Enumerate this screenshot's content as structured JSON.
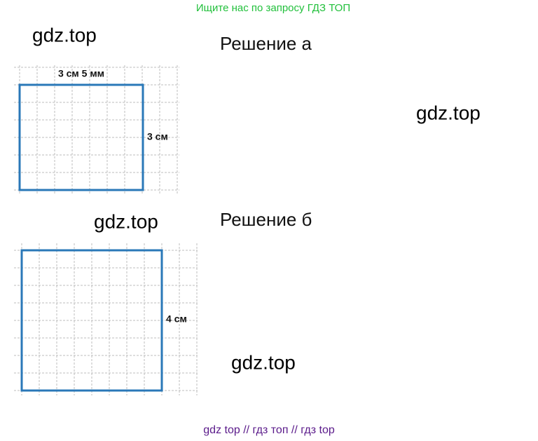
{
  "header": {
    "text": "Ищите нас по запросу ГДЗ ТОП"
  },
  "watermarks": [
    "gdz.top",
    "gdz.top",
    "gdz.top",
    "gdz.top"
  ],
  "solutions": [
    {
      "title": "Решение а",
      "labels": [
        "3 см 5 мм",
        "3 см"
      ]
    },
    {
      "title": "Решение б",
      "labels": [
        "4 см"
      ]
    }
  ],
  "footer": {
    "text": "gdz top  //  гдз топ  //  гдз top"
  }
}
